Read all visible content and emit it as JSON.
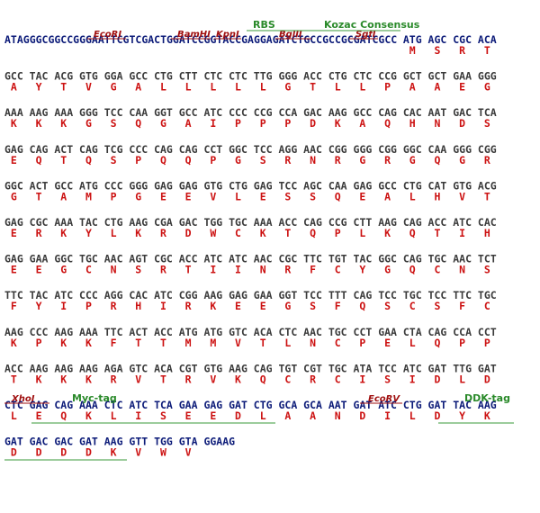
{
  "rows": [
    {
      "leader": "ATAGGGCGGCCGGGAATTCGTCGACTGGATCCGGTACCGAGGAGATCTGCCGCCGCGATCGCC",
      "codons": [
        "ATG",
        "AGC",
        "CGC",
        "ACA"
      ],
      "aminos": [
        "M",
        "S",
        "R",
        "T"
      ]
    },
    {
      "codons": [
        "GCC",
        "TAC",
        "ACG",
        "GTG",
        "GGA",
        "GCC",
        "CTG",
        "CTT",
        "CTC",
        "CTC",
        "TTG",
        "GGG",
        "ACC",
        "CTG",
        "CTC",
        "CCG",
        "GCT",
        "GCT",
        "GAA",
        "GGG"
      ],
      "aminos": [
        "A",
        "Y",
        "T",
        "V",
        "G",
        "A",
        "L",
        "L",
        "L",
        "L",
        "L",
        "G",
        "T",
        "L",
        "L",
        "P",
        "A",
        "A",
        "E",
        "G"
      ]
    },
    {
      "codons": [
        "AAA",
        "AAG",
        "AAA",
        "GGG",
        "TCC",
        "CAA",
        "GGT",
        "GCC",
        "ATC",
        "CCC",
        "CCG",
        "CCA",
        "GAC",
        "AAG",
        "GCC",
        "CAG",
        "CAC",
        "AAT",
        "GAC",
        "TCA"
      ],
      "aminos": [
        "K",
        "K",
        "K",
        "G",
        "S",
        "Q",
        "G",
        "A",
        "I",
        "P",
        "P",
        "P",
        "D",
        "K",
        "A",
        "Q",
        "H",
        "N",
        "D",
        "S"
      ]
    },
    {
      "codons": [
        "GAG",
        "CAG",
        "ACT",
        "CAG",
        "TCG",
        "CCC",
        "CAG",
        "CAG",
        "CCT",
        "GGC",
        "TCC",
        "AGG",
        "AAC",
        "CGG",
        "GGG",
        "CGG",
        "GGC",
        "CAA",
        "GGG",
        "CGG"
      ],
      "aminos": [
        "E",
        "Q",
        "T",
        "Q",
        "S",
        "P",
        "Q",
        "Q",
        "P",
        "G",
        "S",
        "R",
        "N",
        "R",
        "G",
        "R",
        "G",
        "Q",
        "G",
        "R"
      ]
    },
    {
      "codons": [
        "GGC",
        "ACT",
        "GCC",
        "ATG",
        "CCC",
        "GGG",
        "GAG",
        "GAG",
        "GTG",
        "CTG",
        "GAG",
        "TCC",
        "AGC",
        "CAA",
        "GAG",
        "GCC",
        "CTG",
        "CAT",
        "GTG",
        "ACG"
      ],
      "aminos": [
        "G",
        "T",
        "A",
        "M",
        "P",
        "G",
        "E",
        "E",
        "V",
        "L",
        "E",
        "S",
        "S",
        "Q",
        "E",
        "A",
        "L",
        "H",
        "V",
        "T"
      ]
    },
    {
      "codons": [
        "GAG",
        "CGC",
        "AAA",
        "TAC",
        "CTG",
        "AAG",
        "CGA",
        "GAC",
        "TGG",
        "TGC",
        "AAA",
        "ACC",
        "CAG",
        "CCG",
        "CTT",
        "AAG",
        "CAG",
        "ACC",
        "ATC",
        "CAC"
      ],
      "aminos": [
        "E",
        "R",
        "K",
        "Y",
        "L",
        "K",
        "R",
        "D",
        "W",
        "C",
        "K",
        "T",
        "Q",
        "P",
        "L",
        "K",
        "Q",
        "T",
        "I",
        "H"
      ]
    },
    {
      "codons": [
        "GAG",
        "GAA",
        "GGC",
        "TGC",
        "AAC",
        "AGT",
        "CGC",
        "ACC",
        "ATC",
        "ATC",
        "AAC",
        "CGC",
        "TTC",
        "TGT",
        "TAC",
        "GGC",
        "CAG",
        "TGC",
        "AAC",
        "TCT"
      ],
      "aminos": [
        "E",
        "E",
        "G",
        "C",
        "N",
        "S",
        "R",
        "T",
        "I",
        "I",
        "N",
        "R",
        "F",
        "C",
        "Y",
        "G",
        "Q",
        "C",
        "N",
        "S"
      ]
    },
    {
      "codons": [
        "TTC",
        "TAC",
        "ATC",
        "CCC",
        "AGG",
        "CAC",
        "ATC",
        "CGG",
        "AAG",
        "GAG",
        "GAA",
        "GGT",
        "TCC",
        "TTT",
        "CAG",
        "TCC",
        "TGC",
        "TCC",
        "TTC",
        "TGC"
      ],
      "aminos": [
        "F",
        "Y",
        "I",
        "P",
        "R",
        "H",
        "I",
        "R",
        "K",
        "E",
        "E",
        "G",
        "S",
        "F",
        "Q",
        "S",
        "C",
        "S",
        "F",
        "C"
      ]
    },
    {
      "codons": [
        "AAG",
        "CCC",
        "AAG",
        "AAA",
        "TTC",
        "ACT",
        "ACC",
        "ATG",
        "ATG",
        "GTC",
        "ACA",
        "CTC",
        "AAC",
        "TGC",
        "CCT",
        "GAA",
        "CTA",
        "CAG",
        "CCA",
        "CCT"
      ],
      "aminos": [
        "K",
        "P",
        "K",
        "K",
        "F",
        "T",
        "T",
        "M",
        "M",
        "V",
        "T",
        "L",
        "N",
        "C",
        "P",
        "E",
        "L",
        "Q",
        "P",
        "P"
      ]
    },
    {
      "codons": [
        "ACC",
        "AAG",
        "AAG",
        "AAG",
        "AGA",
        "GTC",
        "ACA",
        "CGT",
        "GTG",
        "AAG",
        "CAG",
        "TGT",
        "CGT",
        "TGC",
        "ATA",
        "TCC",
        "ATC",
        "GAT",
        "TTG",
        "GAT"
      ],
      "aminos": [
        "T",
        "K",
        "K",
        "K",
        "R",
        "V",
        "T",
        "R",
        "V",
        "K",
        "Q",
        "C",
        "R",
        "C",
        "I",
        "S",
        "I",
        "D",
        "L",
        "D"
      ]
    },
    {
      "codons": [
        "CTC",
        "GAG",
        "CAG",
        "AAA",
        "CTC",
        "ATC",
        "TCA",
        "GAA",
        "GAG",
        "GAT",
        "CTG",
        "GCA",
        "GCA",
        "AAT",
        "GAT",
        "ATC",
        "CTG",
        "GAT",
        "TAC",
        "AAG"
      ],
      "aminos": [
        "L",
        "E",
        "Q",
        "K",
        "L",
        "I",
        "S",
        "E",
        "E",
        "D",
        "L",
        "A",
        "A",
        "N",
        "D",
        "I",
        "L",
        "D",
        "Y",
        "K"
      ]
    },
    {
      "codons": [
        "GAT",
        "GAC",
        "GAC",
        "GAT",
        "AAG",
        "GTT",
        "TGG",
        "GTA"
      ],
      "tail": "GGAAG",
      "aminos": [
        "D",
        "D",
        "D",
        "D",
        "K",
        "V",
        "W",
        "V"
      ]
    }
  ],
  "sites": [
    "EcoRI",
    "BamHI",
    "KpnI",
    "BglII",
    "SgfI",
    "XhoI",
    "EcoRV"
  ],
  "features": [
    "RBS",
    "Kozac Consensus",
    "Myc-tag",
    "DDK-tag"
  ]
}
